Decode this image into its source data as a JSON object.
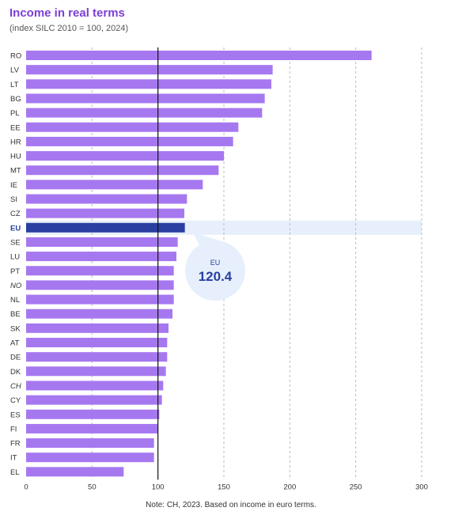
{
  "title": "Income in real terms",
  "subtitle": "(index SILC 2010 = 100, 2024)",
  "note": "Note: CH, 2023. Based on income in euro terms.",
  "colors": {
    "bar": "#a678f0",
    "highlight_bar": "#2a3fa0",
    "highlight_band": "#e6effb",
    "callout_bg": "#e6effb",
    "reference_line": "#111111",
    "grid": "#bbbbbb",
    "title": "#7b3fd6"
  },
  "callout": {
    "label": "EU",
    "value": "120.4"
  },
  "chart_data": {
    "type": "bar",
    "orientation": "horizontal",
    "categories": [
      "RO",
      "LV",
      "LT",
      "BG",
      "PL",
      "EE",
      "HR",
      "HU",
      "MT",
      "IE",
      "SI",
      "CZ",
      "EU",
      "SE",
      "LU",
      "PT",
      "NO",
      "NL",
      "BE",
      "SK",
      "AT",
      "DE",
      "DK",
      "CH",
      "CY",
      "ES",
      "FI",
      "FR",
      "IT",
      "EL"
    ],
    "values": [
      262,
      187,
      186,
      181,
      179,
      161,
      157,
      150,
      146,
      134,
      122,
      120,
      120.4,
      115,
      114,
      112,
      112,
      112,
      111,
      108,
      107,
      107,
      106,
      104,
      103,
      101,
      100,
      97,
      97,
      74
    ],
    "highlight": "EU",
    "italic_categories": [
      "NO",
      "CH"
    ],
    "xlim": [
      0,
      300
    ],
    "xticks": [
      0,
      50,
      100,
      150,
      200,
      250,
      300
    ],
    "reference_line": 100,
    "grid": "vertical dashed"
  }
}
